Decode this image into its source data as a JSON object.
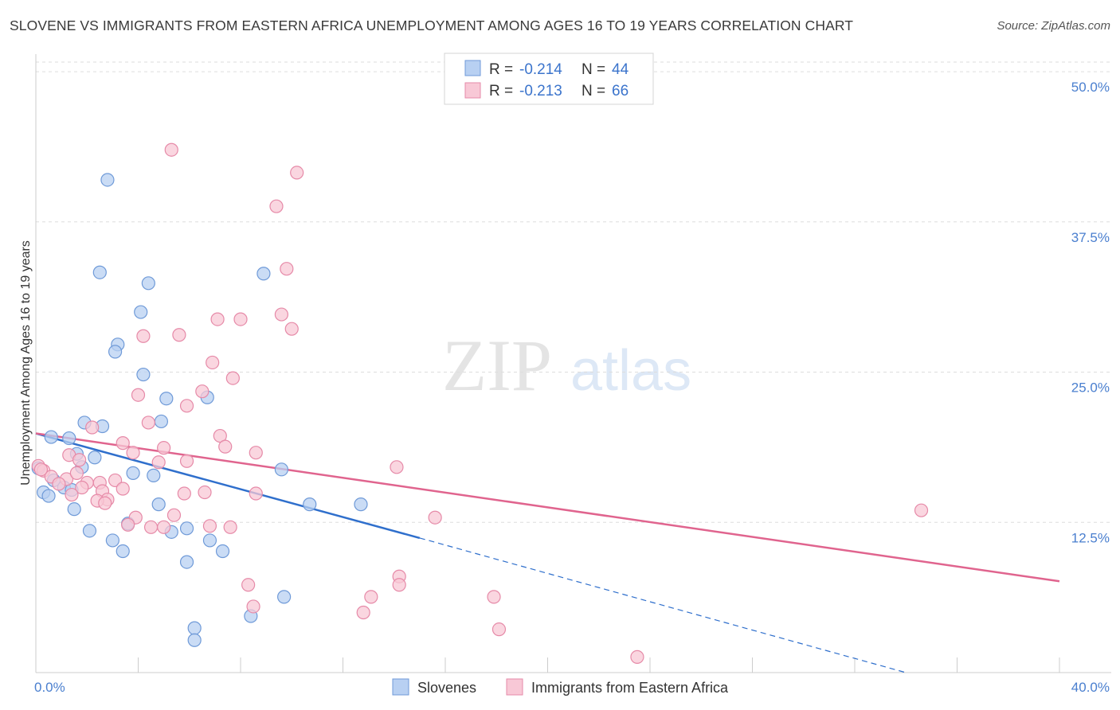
{
  "title": "SLOVENE VS IMMIGRANTS FROM EASTERN AFRICA UNEMPLOYMENT AMONG AGES 16 TO 19 YEARS CORRELATION CHART",
  "source": "Source: ZipAtlas.com",
  "watermark": {
    "zip": "ZIP",
    "atlas": "atlas"
  },
  "legend": {
    "r_label": "R =",
    "n_label": "N =",
    "series": [
      {
        "name": "Slovenes",
        "r": "-0.214",
        "n": "44"
      },
      {
        "name": "Immigrants from Eastern Africa",
        "r": "-0.213",
        "n": "66"
      }
    ]
  },
  "colors": {
    "blue_fill": "#b8d0f2",
    "blue_stroke": "#6f9ad8",
    "blue_line": "#2f6fcc",
    "pink_fill": "#f8c8d6",
    "pink_stroke": "#e68aa8",
    "pink_line": "#e0648e",
    "grid": "#dddddd",
    "tick_text": "#4a7fcf"
  },
  "chart_data": {
    "type": "scatter",
    "title": "SLOVENE VS IMMIGRANTS FROM EASTERN AFRICA UNEMPLOYMENT AMONG AGES 16 TO 19 YEARS CORRELATION CHART",
    "xlabel": "",
    "ylabel": "Unemployment Among Ages 16 to 19 years",
    "xlim": [
      0,
      40
    ],
    "ylim": [
      0,
      50.8
    ],
    "x_tick_labels": [
      "0.0%",
      "40.0%"
    ],
    "y_ticks": [
      12.5,
      25.0,
      37.5,
      50.0
    ],
    "y_tick_labels": [
      "12.5%",
      "25.0%",
      "37.5%",
      "50.0%"
    ],
    "series": [
      {
        "name": "Slovenes",
        "points": [
          [
            2.8,
            41.0
          ],
          [
            2.5,
            33.3
          ],
          [
            8.9,
            33.2
          ],
          [
            4.4,
            32.4
          ],
          [
            4.1,
            30.0
          ],
          [
            3.2,
            27.3
          ],
          [
            3.1,
            26.7
          ],
          [
            4.2,
            24.8
          ],
          [
            5.1,
            22.8
          ],
          [
            6.7,
            22.9
          ],
          [
            1.9,
            20.8
          ],
          [
            2.6,
            20.5
          ],
          [
            4.9,
            20.9
          ],
          [
            0.6,
            19.6
          ],
          [
            1.3,
            19.5
          ],
          [
            1.6,
            18.2
          ],
          [
            2.3,
            17.9
          ],
          [
            0.1,
            17.0
          ],
          [
            1.8,
            17.1
          ],
          [
            0.7,
            16.0
          ],
          [
            3.8,
            16.6
          ],
          [
            4.6,
            16.4
          ],
          [
            9.6,
            16.9
          ],
          [
            0.3,
            15.0
          ],
          [
            1.1,
            15.4
          ],
          [
            0.5,
            14.7
          ],
          [
            1.4,
            15.2
          ],
          [
            10.7,
            14.0
          ],
          [
            12.7,
            14.0
          ],
          [
            1.5,
            13.6
          ],
          [
            4.8,
            14.0
          ],
          [
            3.6,
            12.4
          ],
          [
            5.9,
            12.0
          ],
          [
            2.1,
            11.8
          ],
          [
            5.3,
            11.7
          ],
          [
            3.0,
            11.0
          ],
          [
            6.8,
            11.0
          ],
          [
            3.4,
            10.1
          ],
          [
            7.3,
            10.1
          ],
          [
            5.9,
            9.2
          ],
          [
            9.7,
            6.3
          ],
          [
            8.4,
            4.7
          ],
          [
            6.2,
            3.7
          ],
          [
            6.2,
            2.7
          ]
        ]
      },
      {
        "name": "Immigrants from Eastern Africa",
        "points": [
          [
            5.3,
            43.5
          ],
          [
            10.2,
            41.6
          ],
          [
            9.4,
            38.8
          ],
          [
            9.8,
            33.6
          ],
          [
            9.6,
            29.8
          ],
          [
            7.1,
            29.4
          ],
          [
            8.0,
            29.4
          ],
          [
            10.0,
            28.6
          ],
          [
            4.2,
            28.0
          ],
          [
            5.6,
            28.1
          ],
          [
            6.9,
            25.8
          ],
          [
            7.7,
            24.5
          ],
          [
            6.5,
            23.4
          ],
          [
            4.0,
            23.1
          ],
          [
            5.9,
            22.2
          ],
          [
            2.2,
            20.4
          ],
          [
            4.4,
            20.8
          ],
          [
            7.2,
            19.7
          ],
          [
            3.4,
            19.1
          ],
          [
            5.0,
            18.7
          ],
          [
            7.4,
            18.8
          ],
          [
            8.6,
            18.3
          ],
          [
            3.8,
            18.3
          ],
          [
            1.3,
            18.1
          ],
          [
            1.7,
            17.7
          ],
          [
            4.8,
            17.5
          ],
          [
            5.9,
            17.6
          ],
          [
            14.1,
            17.1
          ],
          [
            0.1,
            17.2
          ],
          [
            0.3,
            16.8
          ],
          [
            0.6,
            16.3
          ],
          [
            1.2,
            16.1
          ],
          [
            1.6,
            16.6
          ],
          [
            0.9,
            15.7
          ],
          [
            2.0,
            15.8
          ],
          [
            3.1,
            16.0
          ],
          [
            2.5,
            15.8
          ],
          [
            1.8,
            15.4
          ],
          [
            3.4,
            15.3
          ],
          [
            2.6,
            15.1
          ],
          [
            5.8,
            14.9
          ],
          [
            6.6,
            15.0
          ],
          [
            8.6,
            14.9
          ],
          [
            1.4,
            14.8
          ],
          [
            2.8,
            14.4
          ],
          [
            2.4,
            14.3
          ],
          [
            2.7,
            14.1
          ],
          [
            3.9,
            12.9
          ],
          [
            5.4,
            13.1
          ],
          [
            15.6,
            12.9
          ],
          [
            34.6,
            13.5
          ],
          [
            4.5,
            12.1
          ],
          [
            5.0,
            12.1
          ],
          [
            3.6,
            12.3
          ],
          [
            6.8,
            12.2
          ],
          [
            7.6,
            12.1
          ],
          [
            14.2,
            8.0
          ],
          [
            14.2,
            7.3
          ],
          [
            8.3,
            7.3
          ],
          [
            13.1,
            6.3
          ],
          [
            17.9,
            6.3
          ],
          [
            8.5,
            5.5
          ],
          [
            12.8,
            5.0
          ],
          [
            18.1,
            3.6
          ],
          [
            23.5,
            1.3
          ],
          [
            0.2,
            16.9
          ]
        ]
      }
    ],
    "trendlines": [
      {
        "name": "Slovenes",
        "x0": 0.0,
        "y0": 19.9,
        "x1": 15.0,
        "y1": 11.2,
        "dashed_to_x": 34.0,
        "dashed_to_y": 0.0
      },
      {
        "name": "Immigrants from Eastern Africa",
        "x0": 0.0,
        "y0": 19.9,
        "x1": 40.0,
        "y1": 7.6
      }
    ]
  }
}
